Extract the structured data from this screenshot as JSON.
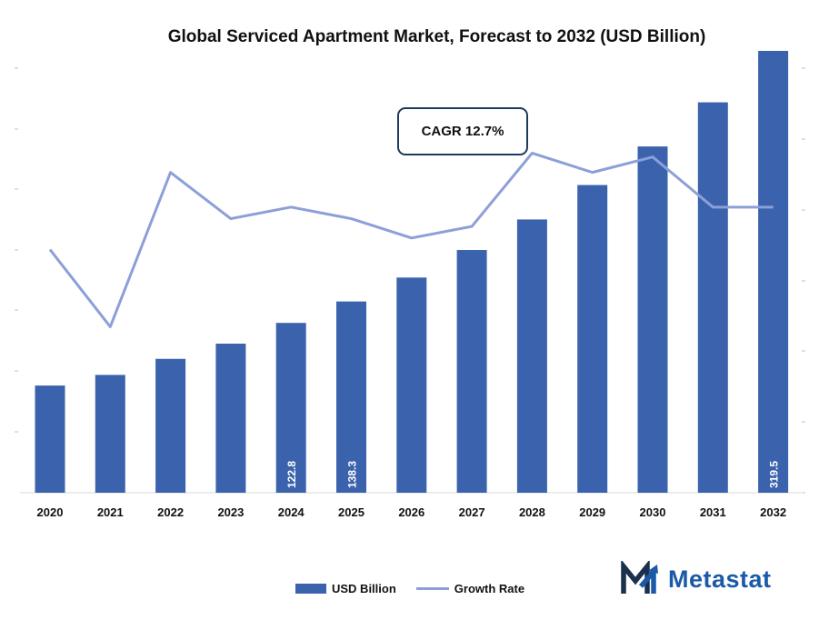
{
  "colors": {
    "bar": "#3b63ad",
    "line": "#8c9fd8",
    "axis_text": "#111111",
    "brand": "#1a5aa8",
    "brand_dark": "#1b2f4e",
    "annotation_border": "#1f3a5f"
  },
  "title": "Global Serviced Apartment Market, Forecast to 2032 (USD Billion)",
  "annotation": {
    "text": "CAGR 12.7%"
  },
  "logo": {
    "text": "Metastat",
    "icon": "metastat-m-icon"
  },
  "legend": {
    "bar_label": "USD Billion",
    "line_label": "Growth Rate",
    "placement": "bottom"
  },
  "chart_data": {
    "type": "bar",
    "title": "Global Serviced Apartment Market, Forecast to 2032 (USD Billion)",
    "categories": [
      "2020",
      "2021",
      "2022",
      "2023",
      "2024",
      "2025",
      "2026",
      "2027",
      "2028",
      "2029",
      "2030",
      "2031",
      "2032"
    ],
    "series": [
      {
        "name": "USD Billion",
        "type": "bar",
        "axis": "left",
        "values": [
          77.5,
          85.2,
          96.8,
          107.8,
          122.8,
          138.3,
          155.6,
          175.5,
          197.6,
          222.5,
          250.4,
          282.3,
          319.5
        ],
        "data_labels": {
          "2024": "122.8",
          "2025": "138.3",
          "2032": "319.5"
        }
      },
      {
        "name": "Growth Rate",
        "type": "line",
        "axis": "right",
        "values": [
          11.3,
          9.3,
          13.3,
          12.1,
          12.4,
          12.1,
          11.6,
          11.9,
          13.8,
          13.3,
          13.7,
          12.4,
          12.4
        ]
      }
    ],
    "ylim_left": [
      0,
      330
    ],
    "ylim_right": [
      5,
      16
    ],
    "grid": false,
    "legend_position": "bottom-center",
    "annotations": [
      "CAGR 12.7%"
    ]
  }
}
